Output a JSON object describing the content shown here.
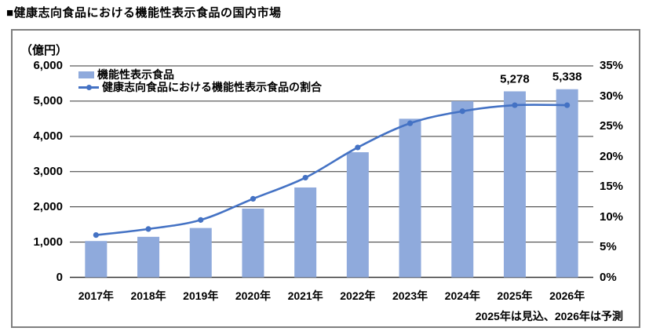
{
  "title": "■健康志向食品における機能性表示食品の国内市場",
  "chart_data": {
    "type": "combo-bar-line",
    "categories": [
      "2017年",
      "2018年",
      "2019年",
      "2020年",
      "2021年",
      "2022年",
      "2023年",
      "2024年",
      "2025年",
      "2026年"
    ],
    "series": [
      {
        "name": "機能性表示食品",
        "type": "bar",
        "axis": "left",
        "unit": "億円",
        "color": "#8FAADC",
        "values": [
          1030,
          1150,
          1400,
          1950,
          2550,
          3550,
          4500,
          5000,
          5278,
          5338
        ]
      },
      {
        "name": "健康志向食品における機能性表示食品の割合",
        "type": "line",
        "axis": "right",
        "unit": "%",
        "color": "#4472C4",
        "values": [
          7,
          8,
          9.5,
          13,
          16.5,
          21.5,
          25.5,
          27.5,
          28.5,
          28.5
        ]
      }
    ],
    "left_axis": {
      "unit_label": "（億円）",
      "min": 0,
      "max": 6000,
      "ticks": [
        "6,000",
        "5,000",
        "4,000",
        "3,000",
        "2,000",
        "1,000",
        "0"
      ]
    },
    "right_axis": {
      "min": 0,
      "max": 35,
      "ticks": [
        "35%",
        "30%",
        "25%",
        "20%",
        "15%",
        "10%",
        "5%",
        "0%"
      ]
    },
    "data_labels": [
      {
        "category": "2025年",
        "value": "5,278"
      },
      {
        "category": "2026年",
        "value": "5,338"
      }
    ],
    "note": "2025年は見込、2026年は予測",
    "grid": true,
    "legend_position": "top-left",
    "colors": {
      "bar_fill": "#8FAADC",
      "line_stroke": "#4472C4",
      "gridline": "#333333",
      "border": "#7f7f7f",
      "text": "#000000"
    }
  }
}
